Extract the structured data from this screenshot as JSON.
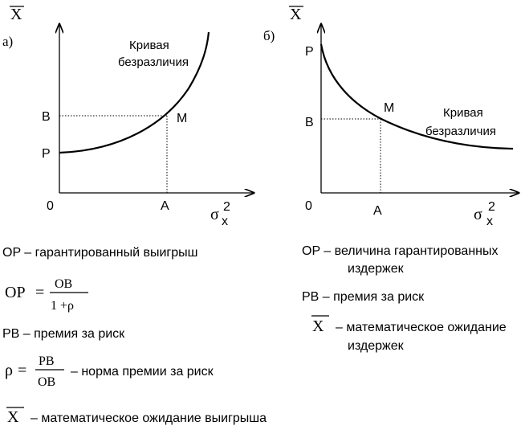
{
  "panel_a": {
    "tag": "а)",
    "y_axis_label": "X",
    "x_axis_label": "σ",
    "x_sup": "2",
    "x_sub": "x",
    "origin": "0",
    "point_p": "P",
    "point_b": "B",
    "point_m": "M",
    "point_a": "A",
    "curve_label_1": "Кривая",
    "curve_label_2": "безразличия"
  },
  "panel_b": {
    "tag": "б)",
    "y_axis_label": "X",
    "x_axis_label": "σ",
    "x_sup": "2",
    "x_sub": "x",
    "origin": "0",
    "point_p": "P",
    "point_b": "B",
    "point_m": "M",
    "point_a": "A",
    "curve_label_1": "Кривая",
    "curve_label_2": "безразличия"
  },
  "legend_a": {
    "op_def": "OP – гарантированный выигрыш",
    "formula1_lhs": "OP",
    "formula1_eq": "=",
    "formula1_num": "OB",
    "formula1_den": "1 +ρ",
    "pb_def": "PB – премия за риск",
    "formula2_lhs": "ρ",
    "formula2_eq": "=",
    "formula2_num": "PB",
    "formula2_den": "OB",
    "formula2_note": "– норма премии за риск",
    "x_symbol": "X",
    "x_def": "– математическое ожидание выигрыша"
  },
  "legend_b": {
    "op_def_1": "OP – величина гарантированных",
    "op_def_2": "издержек",
    "pb_def": "PB – премия за риск",
    "x_symbol": "X",
    "x_def_1": "– математическое ожидание",
    "x_def_2": "издержек"
  }
}
